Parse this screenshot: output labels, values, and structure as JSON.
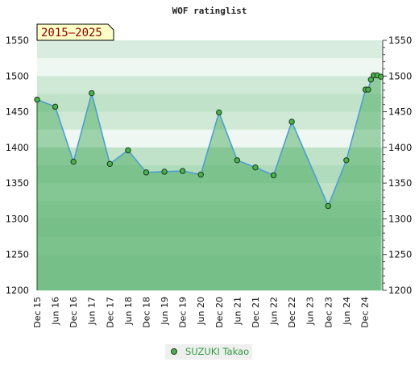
{
  "chart_data": {
    "type": "area",
    "title": "WOF ratinglist",
    "period_label": "2015–2025",
    "ylim": [
      1200,
      1550
    ],
    "y_ticks": [
      1200,
      1250,
      1300,
      1350,
      1400,
      1450,
      1500,
      1550
    ],
    "x_ticks": [
      "Dec 15",
      "Jun 16",
      "Dec 16",
      "Jun 17",
      "Dec 17",
      "Jun 18",
      "Dec 18",
      "Jun 19",
      "Dec 19",
      "Jun 20",
      "Dec 20",
      "Jun 21",
      "Dec 21",
      "Jun 22",
      "Dec 22",
      "Jun 23",
      "Dec 23",
      "Jun 24",
      "Dec 24"
    ],
    "grid": true,
    "legend_position": "bottom",
    "series": [
      {
        "name": "SUZUKI Takao",
        "color": "#4f9fcf",
        "marker_color": "#4caf50",
        "x": [
          0,
          1,
          2,
          3,
          4,
          5,
          6,
          7,
          8,
          9,
          10,
          11,
          12,
          13,
          14,
          16,
          17,
          18.05,
          18.2,
          18.35,
          18.5,
          18.7,
          18.9
        ],
        "values": [
          1467,
          1457,
          1380,
          1476,
          1377,
          1396,
          1365,
          1366,
          1367,
          1362,
          1449,
          1382,
          1372,
          1361,
          1436,
          1318,
          1382,
          1481,
          1481,
          1495,
          1501,
          1501,
          1499
        ]
      }
    ]
  }
}
